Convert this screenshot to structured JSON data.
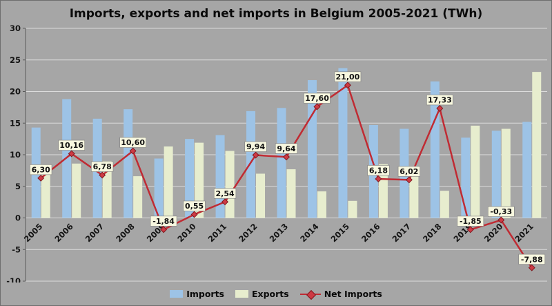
{
  "chart_data": {
    "type": "bar",
    "title": "Imports, exports and net imports in Belgium 2005-2021 (TWh)",
    "categories": [
      "2005",
      "2006",
      "2007",
      "2008",
      "2009",
      "2010",
      "2011",
      "2012",
      "2013",
      "2014",
      "2015",
      "2016",
      "2017",
      "2018",
      "2019",
      "2020",
      "2021"
    ],
    "series": [
      {
        "name": "Imports",
        "type": "bar",
        "values": [
          14.3,
          18.8,
          15.7,
          17.2,
          9.4,
          12.5,
          13.1,
          16.9,
          17.4,
          21.8,
          23.7,
          14.7,
          14.1,
          21.6,
          12.7,
          13.8,
          15.2
        ]
      },
      {
        "name": "Exports",
        "type": "bar",
        "values": [
          8.0,
          8.6,
          9.0,
          6.6,
          11.3,
          11.9,
          10.6,
          7.0,
          7.7,
          4.2,
          2.7,
          8.5,
          8.1,
          4.3,
          14.6,
          14.1,
          23.1
        ]
      },
      {
        "name": "Net Imports",
        "type": "line",
        "values": [
          6.3,
          10.16,
          6.78,
          10.6,
          -1.84,
          0.55,
          2.54,
          9.94,
          9.64,
          17.6,
          21.0,
          6.18,
          6.02,
          17.33,
          -1.85,
          -0.33,
          -7.88
        ],
        "labels": [
          "6,30",
          "10,16",
          "6,78",
          "10,60",
          "-1,84",
          "0,55",
          "2,54",
          "9,94",
          "9,64",
          "17,60",
          "21,00",
          "6,18",
          "6,02",
          "17,33",
          "-1,85",
          "-0,33",
          "-7,88"
        ]
      }
    ],
    "ylim": [
      -10,
      30
    ],
    "yticks": [
      30,
      25,
      20,
      15,
      10,
      5,
      0,
      -5,
      -10
    ],
    "grid": true,
    "legend_position": "bottom",
    "colors": {
      "background": "#A6A6A6",
      "imports": "#9DC3E6",
      "exports": "#E7EDCE",
      "net": "#C02B33",
      "marker": "#CE3A44",
      "marker_edge": "#801A20",
      "gridline": "#DCDCDC",
      "axis": "#595959",
      "label_bg": "#F7F7DF",
      "label_border": "#7F7F7F"
    }
  }
}
